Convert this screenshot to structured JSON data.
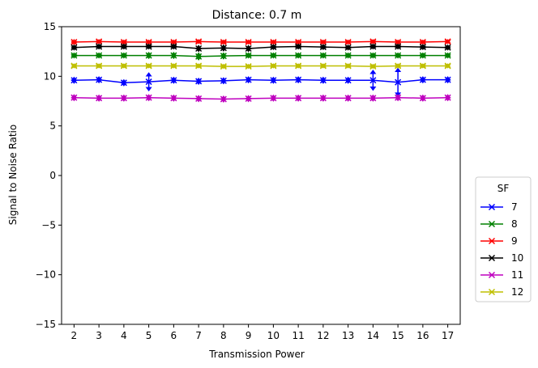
{
  "chart_data": {
    "type": "line",
    "title": "Distance: 0.7 m",
    "xlabel": "Transmission Power",
    "ylabel": "Signal to Noise Ratio",
    "x": [
      2,
      3,
      4,
      5,
      6,
      7,
      8,
      9,
      10,
      11,
      12,
      13,
      14,
      15,
      16,
      17
    ],
    "xticks": [
      "2",
      "3",
      "4",
      "5",
      "6",
      "7",
      "8",
      "9",
      "10",
      "11",
      "12",
      "13",
      "14",
      "15",
      "16",
      "17"
    ],
    "ylim": [
      -15,
      15
    ],
    "yticks": [
      "−15",
      "−10",
      "−5",
      "0",
      "5",
      "10",
      "15"
    ],
    "ytick_values": [
      -15,
      -10,
      -5,
      0,
      5,
      10,
      15
    ],
    "grid": false,
    "legend": {
      "title": "SF",
      "position": "outside-right"
    },
    "series": [
      {
        "name": "7",
        "color": "#0000ff",
        "values": [
          9.6,
          9.65,
          9.35,
          9.45,
          9.6,
          9.5,
          9.55,
          9.65,
          9.6,
          9.65,
          9.6,
          9.6,
          9.6,
          9.4,
          9.65,
          9.65
        ],
        "err": [
          0.3,
          0.3,
          0.3,
          0.9,
          0.3,
          0.3,
          0.3,
          0.3,
          0.3,
          0.3,
          0.3,
          0.3,
          1.0,
          1.4,
          0.3,
          0.3
        ]
      },
      {
        "name": "8",
        "color": "#008000",
        "values": [
          12.1,
          12.1,
          12.1,
          12.1,
          12.1,
          12.0,
          12.05,
          12.1,
          12.1,
          12.1,
          12.1,
          12.1,
          12.1,
          12.1,
          12.1,
          12.1
        ],
        "err": [
          0.25,
          0.25,
          0.25,
          0.3,
          0.3,
          0.35,
          0.3,
          0.25,
          0.25,
          0.25,
          0.25,
          0.25,
          0.25,
          0.25,
          0.25,
          0.25
        ]
      },
      {
        "name": "9",
        "color": "#ff0000",
        "values": [
          13.45,
          13.5,
          13.45,
          13.45,
          13.45,
          13.5,
          13.45,
          13.45,
          13.45,
          13.45,
          13.45,
          13.45,
          13.5,
          13.45,
          13.45,
          13.5
        ],
        "err": [
          0.25,
          0.2,
          0.2,
          0.2,
          0.2,
          0.2,
          0.2,
          0.2,
          0.2,
          0.2,
          0.2,
          0.2,
          0.2,
          0.2,
          0.2,
          0.2
        ]
      },
      {
        "name": "10",
        "color": "#000000",
        "values": [
          12.9,
          13.0,
          13.0,
          13.0,
          13.0,
          12.8,
          12.85,
          12.8,
          12.95,
          13.0,
          12.95,
          12.9,
          13.0,
          13.0,
          12.95,
          12.9
        ],
        "err": [
          0.25,
          0.25,
          0.25,
          0.25,
          0.25,
          0.3,
          0.3,
          0.3,
          0.25,
          0.25,
          0.25,
          0.25,
          0.25,
          0.25,
          0.25,
          0.25
        ]
      },
      {
        "name": "11",
        "color": "#bf00bf",
        "values": [
          7.85,
          7.8,
          7.8,
          7.85,
          7.8,
          7.75,
          7.7,
          7.75,
          7.8,
          7.8,
          7.8,
          7.8,
          7.8,
          7.85,
          7.8,
          7.85
        ],
        "err": [
          0.3,
          0.3,
          0.3,
          0.3,
          0.3,
          0.3,
          0.3,
          0.3,
          0.3,
          0.3,
          0.3,
          0.3,
          0.3,
          0.3,
          0.3,
          0.3
        ]
      },
      {
        "name": "12",
        "color": "#bfbf00",
        "values": [
          11.05,
          11.05,
          11.05,
          11.05,
          11.05,
          11.05,
          11.0,
          11.0,
          11.05,
          11.05,
          11.05,
          11.05,
          11.0,
          11.05,
          11.05,
          11.05
        ],
        "err": [
          0.2,
          0.2,
          0.2,
          0.2,
          0.2,
          0.2,
          0.2,
          0.2,
          0.2,
          0.2,
          0.2,
          0.2,
          0.2,
          0.2,
          0.2,
          0.2
        ]
      }
    ]
  }
}
